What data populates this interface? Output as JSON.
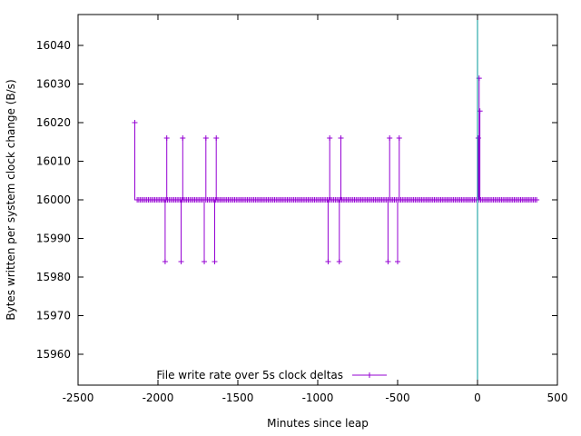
{
  "chart_data": {
    "type": "line",
    "title": "",
    "xlabel": "Minutes since leap",
    "ylabel": "Bytes written per system clock change (B/s)",
    "xlim": [
      -2500,
      500
    ],
    "ylim": [
      15952,
      16048
    ],
    "x_ticks": [
      -2500,
      -2000,
      -1500,
      -1000,
      -500,
      0,
      500
    ],
    "y_ticks": [
      15960,
      15970,
      15980,
      15990,
      16000,
      16010,
      16020,
      16030,
      16040
    ],
    "grid": false,
    "legend_position": "bottom-center",
    "series": [
      {
        "name": "File write rate over 5s clock deltas",
        "color": "#9400d3",
        "marker": "plus",
        "baseline": 16000,
        "x_start": -2130,
        "x_end": 370,
        "x_step": 10,
        "events": [
          {
            "x": -2145,
            "y": 16020
          },
          {
            "x": -1955,
            "y": 15984
          },
          {
            "x": -1945,
            "y": 16016
          },
          {
            "x": -1855,
            "y": 15984
          },
          {
            "x": -1845,
            "y": 16016
          },
          {
            "x": -1710,
            "y": 15984
          },
          {
            "x": -1700,
            "y": 16016
          },
          {
            "x": -1645,
            "y": 15984
          },
          {
            "x": -1635,
            "y": 16016
          },
          {
            "x": -935,
            "y": 15984
          },
          {
            "x": -925,
            "y": 16016
          },
          {
            "x": -865,
            "y": 15984
          },
          {
            "x": -855,
            "y": 16016
          },
          {
            "x": -560,
            "y": 15984
          },
          {
            "x": -550,
            "y": 16016
          },
          {
            "x": -500,
            "y": 15984
          },
          {
            "x": -490,
            "y": 16016
          },
          {
            "x": 5,
            "y": 16016
          },
          {
            "x": 10,
            "y": 16031.5
          },
          {
            "x": 15,
            "y": 16023
          }
        ]
      }
    ],
    "vertical_line": {
      "x": 0,
      "color": "#009999"
    }
  }
}
